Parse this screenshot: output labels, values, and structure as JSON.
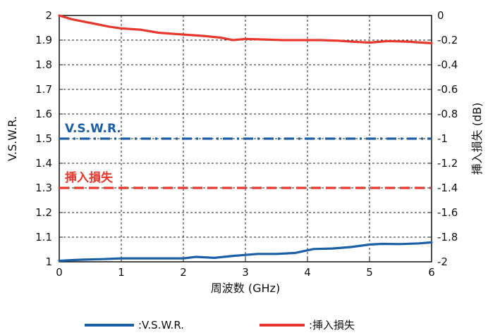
{
  "chart_data": {
    "type": "line",
    "xlabel": "周波数 (GHz)",
    "ylabel_left": "V.S.W.R.",
    "ylabel_right": "挿入損失 (dB)",
    "x_ticks": [
      "0",
      "1",
      "2",
      "3",
      "4",
      "5",
      "6"
    ],
    "y_left_ticks": [
      "1",
      "1.1",
      "1.2",
      "1.3",
      "1.4",
      "1.5",
      "1.6",
      "1.7",
      "1.8",
      "1.9",
      "2"
    ],
    "y_right_ticks": [
      "-2",
      "-1.8",
      "-1.6",
      "-1.4",
      "-1.2",
      "-1",
      "-0.8",
      "-0.6",
      "-0.4",
      "-0.2",
      "0"
    ],
    "xlim": [
      0,
      6
    ],
    "ylim_left": [
      1,
      2
    ],
    "ylim_right": [
      -2,
      0
    ],
    "grid": true,
    "legend_position": "bottom",
    "series": [
      {
        "name": ":V.S.W.R.",
        "axis": "left",
        "color": "#1a5ea8",
        "x": [
          0,
          0.2,
          0.4,
          0.7,
          1.0,
          1.5,
          2.0,
          2.2,
          2.5,
          2.8,
          3.0,
          3.2,
          3.5,
          3.8,
          4.1,
          4.4,
          4.7,
          5.0,
          5.2,
          5.5,
          5.8,
          6.0
        ],
        "y": [
          1.004,
          1.007,
          1.009,
          1.011,
          1.014,
          1.014,
          1.014,
          1.02,
          1.016,
          1.024,
          1.028,
          1.032,
          1.032,
          1.036,
          1.052,
          1.054,
          1.06,
          1.07,
          1.073,
          1.072,
          1.075,
          1.079
        ]
      },
      {
        "name": ":挿入損失",
        "axis": "right",
        "color": "#e8372c",
        "x": [
          0,
          0.2,
          0.5,
          0.8,
          1.0,
          1.3,
          1.6,
          2.0,
          2.3,
          2.6,
          2.8,
          3.0,
          3.3,
          3.6,
          3.9,
          4.2,
          4.5,
          4.8,
          5.0,
          5.3,
          5.6,
          6.0
        ],
        "y": [
          0.0,
          -0.03,
          -0.06,
          -0.09,
          -0.105,
          -0.115,
          -0.14,
          -0.155,
          -0.165,
          -0.18,
          -0.2,
          -0.19,
          -0.195,
          -0.2,
          -0.2,
          -0.2,
          -0.205,
          -0.215,
          -0.22,
          -0.208,
          -0.212,
          -0.225
        ]
      }
    ],
    "reference_lines": [
      {
        "label": "V.S.W.R.",
        "axis": "left",
        "value": 1.5,
        "color": "#1a5ea8",
        "style": "dash-dot"
      },
      {
        "label": "挿入損失",
        "axis": "right",
        "value": -1.4,
        "color": "#e8372c",
        "style": "dashed"
      }
    ]
  }
}
